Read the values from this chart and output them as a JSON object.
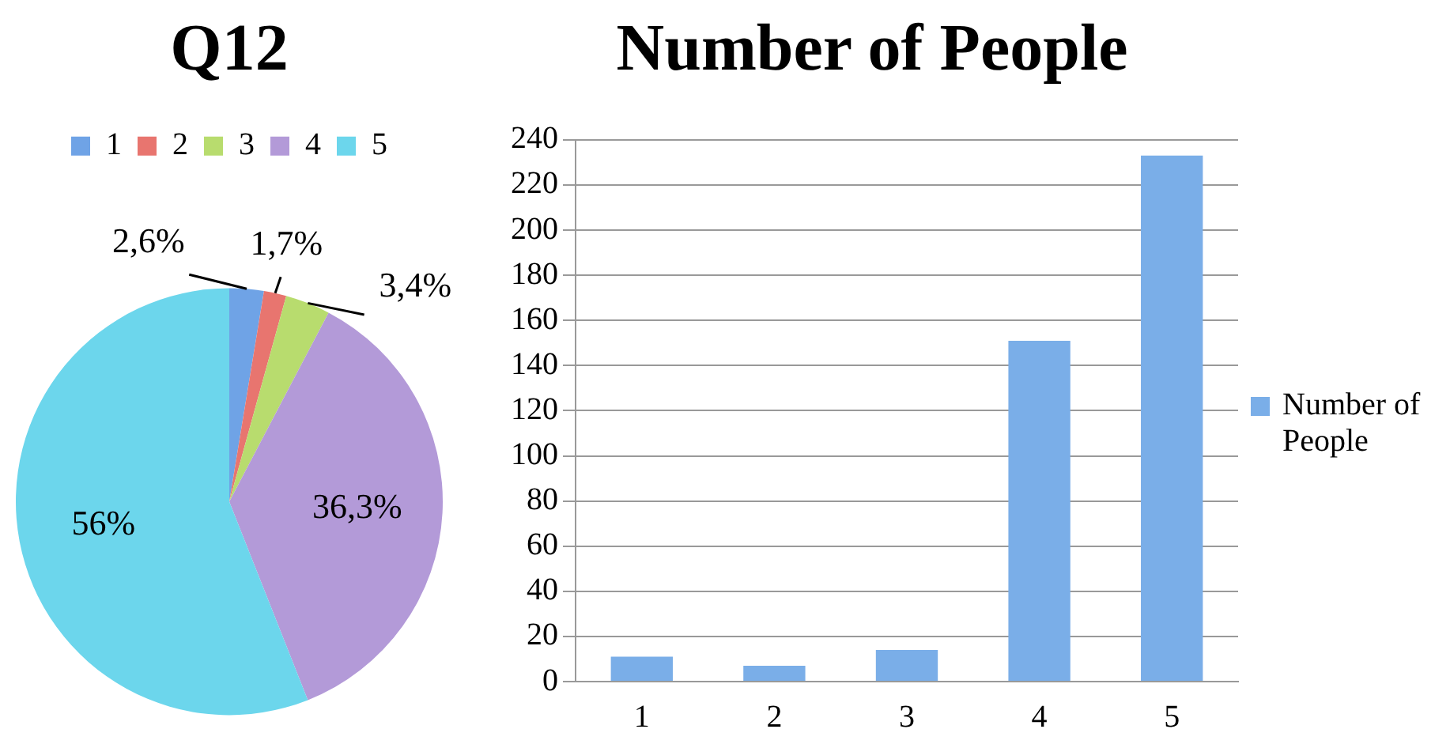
{
  "chart_data": [
    {
      "type": "pie",
      "title": "Q12",
      "categories": [
        "1",
        "2",
        "3",
        "4",
        "5"
      ],
      "values": [
        2.6,
        1.7,
        3.4,
        36.3,
        56
      ],
      "colors": [
        "#6fa3e6",
        "#e8756f",
        "#b8dc6e",
        "#b39ad8",
        "#6cd6ec"
      ],
      "value_labels": [
        "2,6%",
        "1,7%",
        "3,4%",
        "36,3%",
        "56%"
      ],
      "legend": "top"
    },
    {
      "type": "bar",
      "title": "Number of People",
      "categories": [
        "1",
        "2",
        "3",
        "4",
        "5"
      ],
      "series": [
        {
          "name": "Number of People",
          "color": "#7aaee8",
          "values": [
            11,
            7,
            14,
            151,
            233
          ]
        }
      ],
      "ylim": [
        0,
        240
      ],
      "yticks": [
        0,
        20,
        40,
        60,
        80,
        100,
        120,
        140,
        160,
        180,
        200,
        220,
        240
      ],
      "grid": "y",
      "legend": "right"
    }
  ]
}
